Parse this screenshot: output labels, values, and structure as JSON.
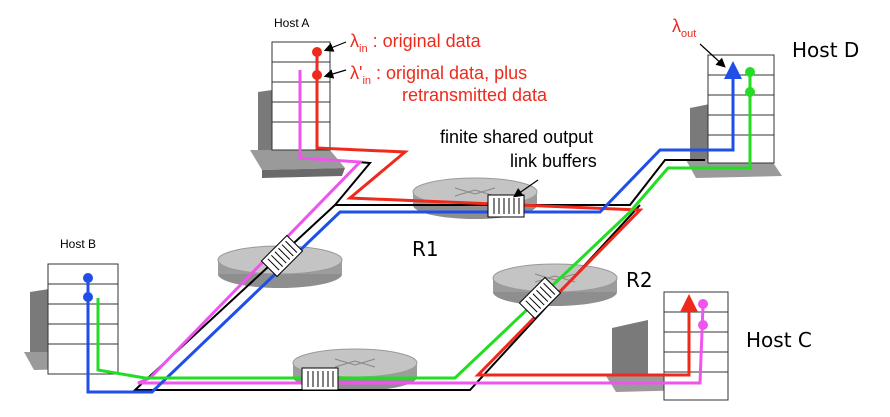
{
  "hosts": {
    "a": "Host A",
    "b": "Host B",
    "c": "Host C",
    "d": "Host D"
  },
  "routers": {
    "r1": "R1",
    "r2": "R2"
  },
  "labels": {
    "lambda": "λ",
    "lambda_prime": "λ'",
    "sub_in": "in",
    "sub_out": "out",
    "original_data": " : original data",
    "original_plus_line1": " : original data, plus",
    "original_plus_line2": "retransmitted data",
    "buffer_line1": "finite shared output",
    "buffer_line2": "link buffers"
  },
  "colors": {
    "red": "#ee2a1c",
    "green": "#22dd22",
    "blue": "#1f4fe8",
    "magenta": "#ee55ee",
    "black": "#000000",
    "router_gray": "#b8b8b8",
    "host_gray": "#8a8a8a"
  }
}
